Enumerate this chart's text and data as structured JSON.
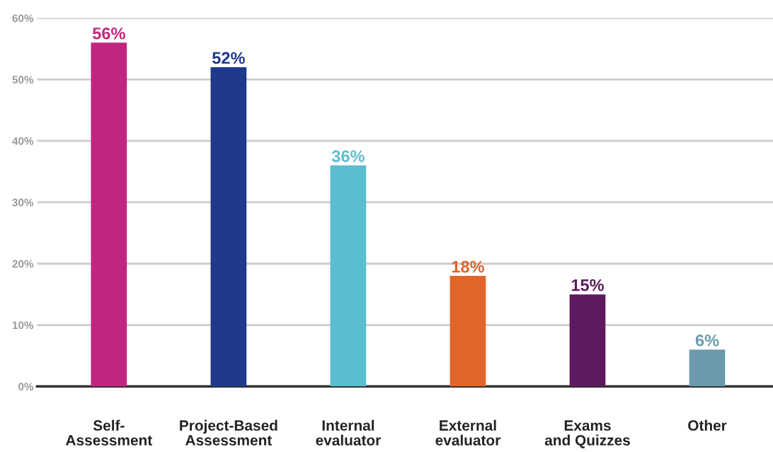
{
  "chart_data": {
    "type": "bar",
    "categories": [
      "Self-\nAssessment",
      "Project-Based\nAssessment",
      "Internal\nevaluator",
      "External\nevaluator",
      "Exams\nand Quizzes",
      "Other"
    ],
    "values": [
      56,
      52,
      36,
      18,
      15,
      6
    ],
    "colors": [
      "#c0267f",
      "#1f3a8a",
      "#5bbdd0",
      "#e0652a",
      "#5e1a5e",
      "#6a9aab"
    ],
    "value_labels": [
      "56%",
      "52%",
      "36%",
      "18%",
      "15%",
      "6%"
    ],
    "ylim": [
      0,
      60
    ],
    "yticks": [
      {
        "value": 0,
        "label": "0%"
      },
      {
        "value": 10,
        "label": "10%"
      },
      {
        "value": 20,
        "label": "20%"
      },
      {
        "value": 30,
        "label": "30%"
      },
      {
        "value": 40,
        "label": "40%"
      },
      {
        "value": 50,
        "label": "50%"
      },
      {
        "value": 60,
        "label": "60%"
      }
    ],
    "grid": "y"
  }
}
